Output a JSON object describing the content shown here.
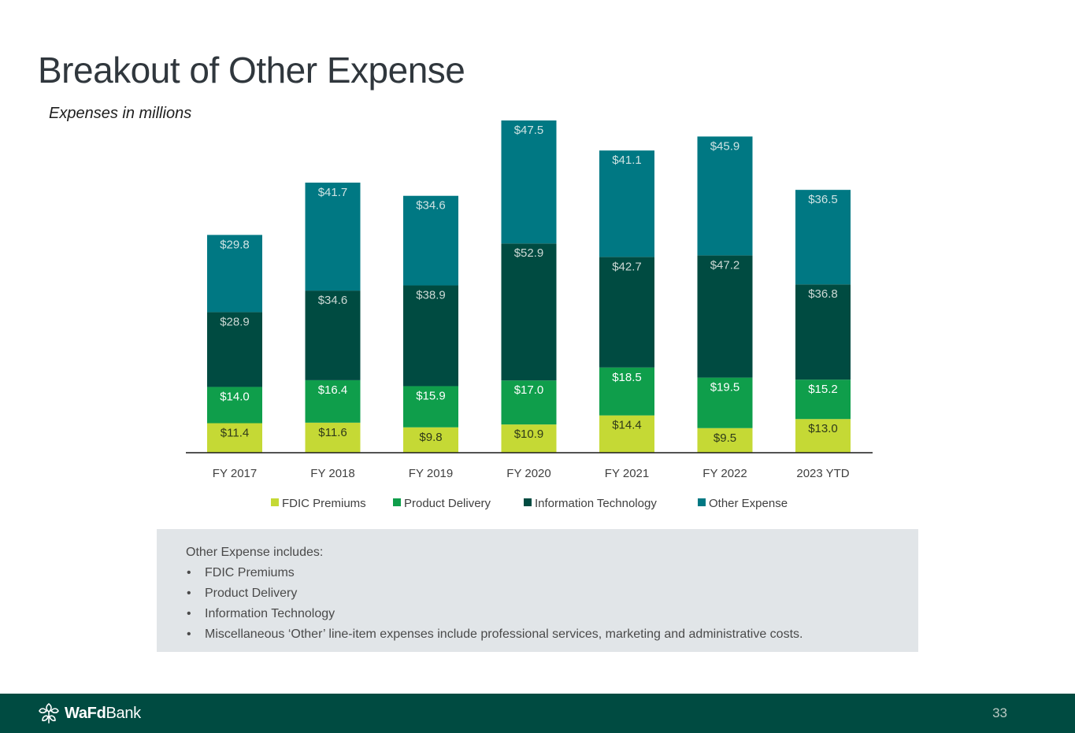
{
  "slide": {
    "title": "Breakout of Other Expense",
    "subtitle": "Expenses in millions",
    "page_number": "33"
  },
  "chart_data": {
    "type": "bar",
    "stacked": true,
    "categories": [
      "FY 2017",
      "FY 2018",
      "FY 2019",
      "FY 2020",
      "FY 2021",
      "FY 2022",
      "2023 YTD"
    ],
    "series": [
      {
        "name": "FDIC Premiums",
        "color": "#c5d935",
        "values": [
          11.4,
          11.6,
          9.8,
          10.9,
          14.4,
          9.5,
          13.0
        ],
        "labels": [
          "$11.4",
          "$11.6",
          "$9.8",
          "$10.9",
          "$14.4",
          "$9.5",
          "$13.0"
        ]
      },
      {
        "name": "Product Delivery",
        "color": "#0f9e4b",
        "values": [
          14.0,
          16.4,
          15.9,
          17.0,
          18.5,
          19.5,
          15.2
        ],
        "labels": [
          "$14.0",
          "$16.4",
          "$15.9",
          "$17.0",
          "$18.5",
          "$19.5",
          "$15.2"
        ]
      },
      {
        "name": "Information Technology",
        "color": "#004b41",
        "values": [
          28.9,
          34.6,
          38.9,
          52.9,
          42.7,
          47.2,
          36.8
        ],
        "labels": [
          "$28.9",
          "$34.6",
          "$38.9",
          "$52.9",
          "$42.7",
          "$47.2",
          "$36.8"
        ]
      },
      {
        "name": "Other Expense",
        "color": "#007883",
        "values": [
          29.8,
          41.7,
          34.6,
          47.5,
          41.1,
          45.9,
          36.5
        ],
        "labels": [
          "$29.8",
          "$41.7",
          "$34.6",
          "$47.5",
          "$41.1",
          "$45.9",
          "$36.5"
        ]
      }
    ],
    "ylim": [
      0,
      128.3
    ],
    "grid": false,
    "legend": "bottom"
  },
  "info": {
    "intro": "Other Expense includes:",
    "items": [
      "FDIC Premiums",
      "Product Delivery",
      "Information Technology",
      "Miscellaneous ‘Other’ line-item expenses include professional services, marketing and administrative costs."
    ]
  },
  "footer": {
    "logo_bold": "WaFd",
    "logo_regular": "Bank",
    "logo_icon": "wafd-leaf-icon"
  }
}
